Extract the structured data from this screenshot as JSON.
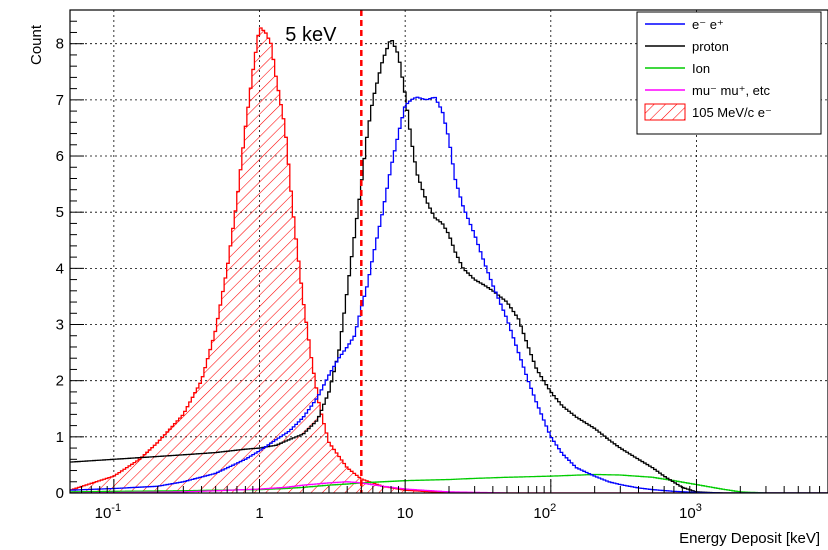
{
  "chart_data": {
    "type": "line",
    "title": "",
    "xlabel": "Energy Deposit [keV]",
    "ylabel": "Count",
    "x_scale": "log",
    "xlim": [
      0.05,
      8000
    ],
    "ylim": [
      0,
      8.6
    ],
    "grid": true,
    "legend_position": "top-right",
    "x_ticks": [
      {
        "value": 0.1,
        "base": "10",
        "exp": "-1"
      },
      {
        "value": 1,
        "base": "1",
        "exp": ""
      },
      {
        "value": 10,
        "base": "10",
        "exp": ""
      },
      {
        "value": 100,
        "base": "10",
        "exp": "2"
      },
      {
        "value": 1000,
        "base": "10",
        "exp": "3"
      }
    ],
    "y_ticks": [
      0,
      1,
      2,
      3,
      4,
      5,
      6,
      7,
      8
    ],
    "annotation": {
      "text": "5 keV",
      "x": 5,
      "color": "#ff0000"
    },
    "series": [
      {
        "name": "e⁻ e⁺",
        "color": "#0000ff",
        "fill": false,
        "points": [
          [
            0.05,
            0.05
          ],
          [
            0.1,
            0.08
          ],
          [
            0.2,
            0.12
          ],
          [
            0.3,
            0.2
          ],
          [
            0.5,
            0.35
          ],
          [
            0.8,
            0.6
          ],
          [
            1.0,
            0.75
          ],
          [
            1.3,
            0.95
          ],
          [
            1.6,
            1.1
          ],
          [
            2.0,
            1.35
          ],
          [
            2.5,
            1.7
          ],
          [
            3.0,
            2.1
          ],
          [
            3.5,
            2.4
          ],
          [
            4.0,
            2.6
          ],
          [
            4.5,
            2.8
          ],
          [
            5.0,
            3.3
          ],
          [
            5.5,
            3.7
          ],
          [
            6.0,
            4.2
          ],
          [
            7.0,
            5.0
          ],
          [
            8.0,
            5.8
          ],
          [
            9.0,
            6.4
          ],
          [
            10,
            6.9
          ],
          [
            11,
            7.0
          ],
          [
            12,
            7.05
          ],
          [
            14,
            7.0
          ],
          [
            16,
            7.05
          ],
          [
            18,
            6.8
          ],
          [
            20,
            6.3
          ],
          [
            22,
            5.6
          ],
          [
            25,
            5.1
          ],
          [
            30,
            4.6
          ],
          [
            35,
            4.1
          ],
          [
            40,
            3.7
          ],
          [
            50,
            3.1
          ],
          [
            60,
            2.5
          ],
          [
            70,
            2.0
          ],
          [
            80,
            1.6
          ],
          [
            100,
            1.0
          ],
          [
            120,
            0.7
          ],
          [
            150,
            0.45
          ],
          [
            200,
            0.3
          ],
          [
            250,
            0.2
          ],
          [
            300,
            0.15
          ],
          [
            400,
            0.09
          ],
          [
            500,
            0.06
          ],
          [
            700,
            0.03
          ],
          [
            1000,
            0.01
          ],
          [
            1500,
            0.0
          ]
        ]
      },
      {
        "name": "proton",
        "color": "#000000",
        "fill": false,
        "points": [
          [
            0.05,
            0.55
          ],
          [
            0.1,
            0.6
          ],
          [
            0.2,
            0.65
          ],
          [
            0.3,
            0.68
          ],
          [
            0.5,
            0.72
          ],
          [
            0.8,
            0.78
          ],
          [
            1.0,
            0.8
          ],
          [
            1.3,
            0.85
          ],
          [
            1.6,
            0.95
          ],
          [
            2.0,
            1.05
          ],
          [
            2.5,
            1.3
          ],
          [
            3.0,
            1.8
          ],
          [
            3.5,
            2.5
          ],
          [
            4.0,
            3.6
          ],
          [
            4.5,
            4.6
          ],
          [
            5.0,
            5.5
          ],
          [
            5.5,
            6.4
          ],
          [
            6.0,
            7.0
          ],
          [
            7.0,
            7.7
          ],
          [
            8.0,
            8.1
          ],
          [
            9.0,
            7.8
          ],
          [
            10,
            7.1
          ],
          [
            11,
            6.3
          ],
          [
            12,
            5.7
          ],
          [
            14,
            5.2
          ],
          [
            16,
            4.9
          ],
          [
            18,
            4.8
          ],
          [
            20,
            4.6
          ],
          [
            22,
            4.3
          ],
          [
            25,
            4.0
          ],
          [
            30,
            3.8
          ],
          [
            35,
            3.7
          ],
          [
            40,
            3.6
          ],
          [
            50,
            3.4
          ],
          [
            60,
            3.1
          ],
          [
            70,
            2.6
          ],
          [
            80,
            2.2
          ],
          [
            100,
            1.8
          ],
          [
            120,
            1.55
          ],
          [
            150,
            1.35
          ],
          [
            200,
            1.15
          ],
          [
            250,
            0.95
          ],
          [
            300,
            0.8
          ],
          [
            400,
            0.6
          ],
          [
            500,
            0.45
          ],
          [
            600,
            0.3
          ],
          [
            800,
            0.1
          ],
          [
            1000,
            0.02
          ],
          [
            1500,
            0.0
          ]
        ]
      },
      {
        "name": "Ion",
        "color": "#00cc00",
        "fill": false,
        "points": [
          [
            0.05,
            0.02
          ],
          [
            0.1,
            0.03
          ],
          [
            0.3,
            0.04
          ],
          [
            0.5,
            0.05
          ],
          [
            1.0,
            0.06
          ],
          [
            1.5,
            0.08
          ],
          [
            2.0,
            0.1
          ],
          [
            3.0,
            0.14
          ],
          [
            4.0,
            0.16
          ],
          [
            5.0,
            0.18
          ],
          [
            7.0,
            0.2
          ],
          [
            10,
            0.22
          ],
          [
            20,
            0.24
          ],
          [
            30,
            0.26
          ],
          [
            50,
            0.28
          ],
          [
            100,
            0.3
          ],
          [
            200,
            0.33
          ],
          [
            300,
            0.32
          ],
          [
            500,
            0.28
          ],
          [
            700,
            0.22
          ],
          [
            1000,
            0.15
          ],
          [
            1500,
            0.07
          ],
          [
            2000,
            0.02
          ],
          [
            3000,
            0.0
          ]
        ]
      },
      {
        "name": "mu⁻ mu⁺, etc",
        "color": "#ff00ff",
        "fill": false,
        "points": [
          [
            0.05,
            0.0
          ],
          [
            0.3,
            0.02
          ],
          [
            0.5,
            0.04
          ],
          [
            1.0,
            0.07
          ],
          [
            1.5,
            0.1
          ],
          [
            2.0,
            0.14
          ],
          [
            3.0,
            0.18
          ],
          [
            4.0,
            0.2
          ],
          [
            5.0,
            0.18
          ],
          [
            7.0,
            0.12
          ],
          [
            10,
            0.07
          ],
          [
            20,
            0.02
          ],
          [
            50,
            0.0
          ]
        ]
      },
      {
        "name": "105 MeV/c e⁻",
        "color": "#ff0000",
        "fill": true,
        "points": [
          [
            0.05,
            0.05
          ],
          [
            0.1,
            0.3
          ],
          [
            0.15,
            0.6
          ],
          [
            0.2,
            0.9
          ],
          [
            0.3,
            1.4
          ],
          [
            0.4,
            2.0
          ],
          [
            0.5,
            2.9
          ],
          [
            0.6,
            4.0
          ],
          [
            0.7,
            5.2
          ],
          [
            0.8,
            6.5
          ],
          [
            0.9,
            7.5
          ],
          [
            1.0,
            8.3
          ],
          [
            1.1,
            8.2
          ],
          [
            1.2,
            8.0
          ],
          [
            1.3,
            7.4
          ],
          [
            1.5,
            6.5
          ],
          [
            1.7,
            5.0
          ],
          [
            2.0,
            3.4
          ],
          [
            2.3,
            2.3
          ],
          [
            2.6,
            1.5
          ],
          [
            3.0,
            0.9
          ],
          [
            4.0,
            0.45
          ],
          [
            5.0,
            0.25
          ],
          [
            7.0,
            0.12
          ],
          [
            10,
            0.05
          ],
          [
            20,
            0.0
          ]
        ]
      }
    ]
  }
}
